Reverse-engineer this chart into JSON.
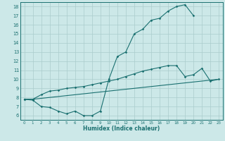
{
  "background_color": "#cce8e8",
  "grid_color": "#aacccc",
  "line_color": "#1a7070",
  "xlabel": "Humidex (Indice chaleur)",
  "xlim": [
    -0.5,
    23.5
  ],
  "ylim": [
    5.5,
    18.5
  ],
  "xticks": [
    0,
    1,
    2,
    3,
    4,
    5,
    6,
    7,
    8,
    9,
    10,
    11,
    12,
    13,
    14,
    15,
    16,
    17,
    18,
    19,
    20,
    21,
    22,
    23
  ],
  "yticks": [
    6,
    7,
    8,
    9,
    10,
    11,
    12,
    13,
    14,
    15,
    16,
    17,
    18
  ],
  "curve1_x": [
    0,
    1,
    2,
    3,
    4,
    5,
    6,
    7,
    8,
    9,
    10,
    11,
    12,
    13,
    14,
    15,
    16,
    17,
    18,
    19,
    20
  ],
  "curve1_y": [
    7.8,
    7.7,
    7.0,
    6.9,
    6.5,
    6.2,
    6.5,
    6.0,
    6.0,
    6.5,
    10.0,
    12.5,
    13.0,
    15.0,
    15.5,
    16.5,
    16.7,
    17.5,
    18.0,
    18.2,
    17.0
  ],
  "curve2_x": [
    0,
    1,
    2,
    3,
    4,
    5,
    6,
    7,
    8,
    9,
    10,
    11,
    12,
    13,
    14,
    15,
    16,
    17,
    18,
    19,
    20,
    21,
    22,
    23
  ],
  "curve2_y": [
    7.8,
    7.8,
    8.3,
    8.7,
    8.8,
    9.0,
    9.1,
    9.2,
    9.4,
    9.6,
    9.8,
    10.0,
    10.3,
    10.6,
    10.9,
    11.1,
    11.3,
    11.5,
    11.5,
    10.3,
    10.5,
    11.2,
    9.8,
    10.0
  ],
  "curve3_x": [
    0,
    1,
    2,
    3,
    4,
    5,
    6,
    7,
    8,
    9,
    10,
    11,
    12,
    13,
    14,
    15,
    16,
    17,
    18,
    19,
    20,
    21,
    22,
    23
  ],
  "curve3_y": [
    7.8,
    7.8,
    7.9,
    8.0,
    8.1,
    8.2,
    8.3,
    8.4,
    8.5,
    8.6,
    8.7,
    8.8,
    8.9,
    9.0,
    9.1,
    9.2,
    9.3,
    9.4,
    9.5,
    9.6,
    9.7,
    9.8,
    9.9,
    10.0
  ]
}
